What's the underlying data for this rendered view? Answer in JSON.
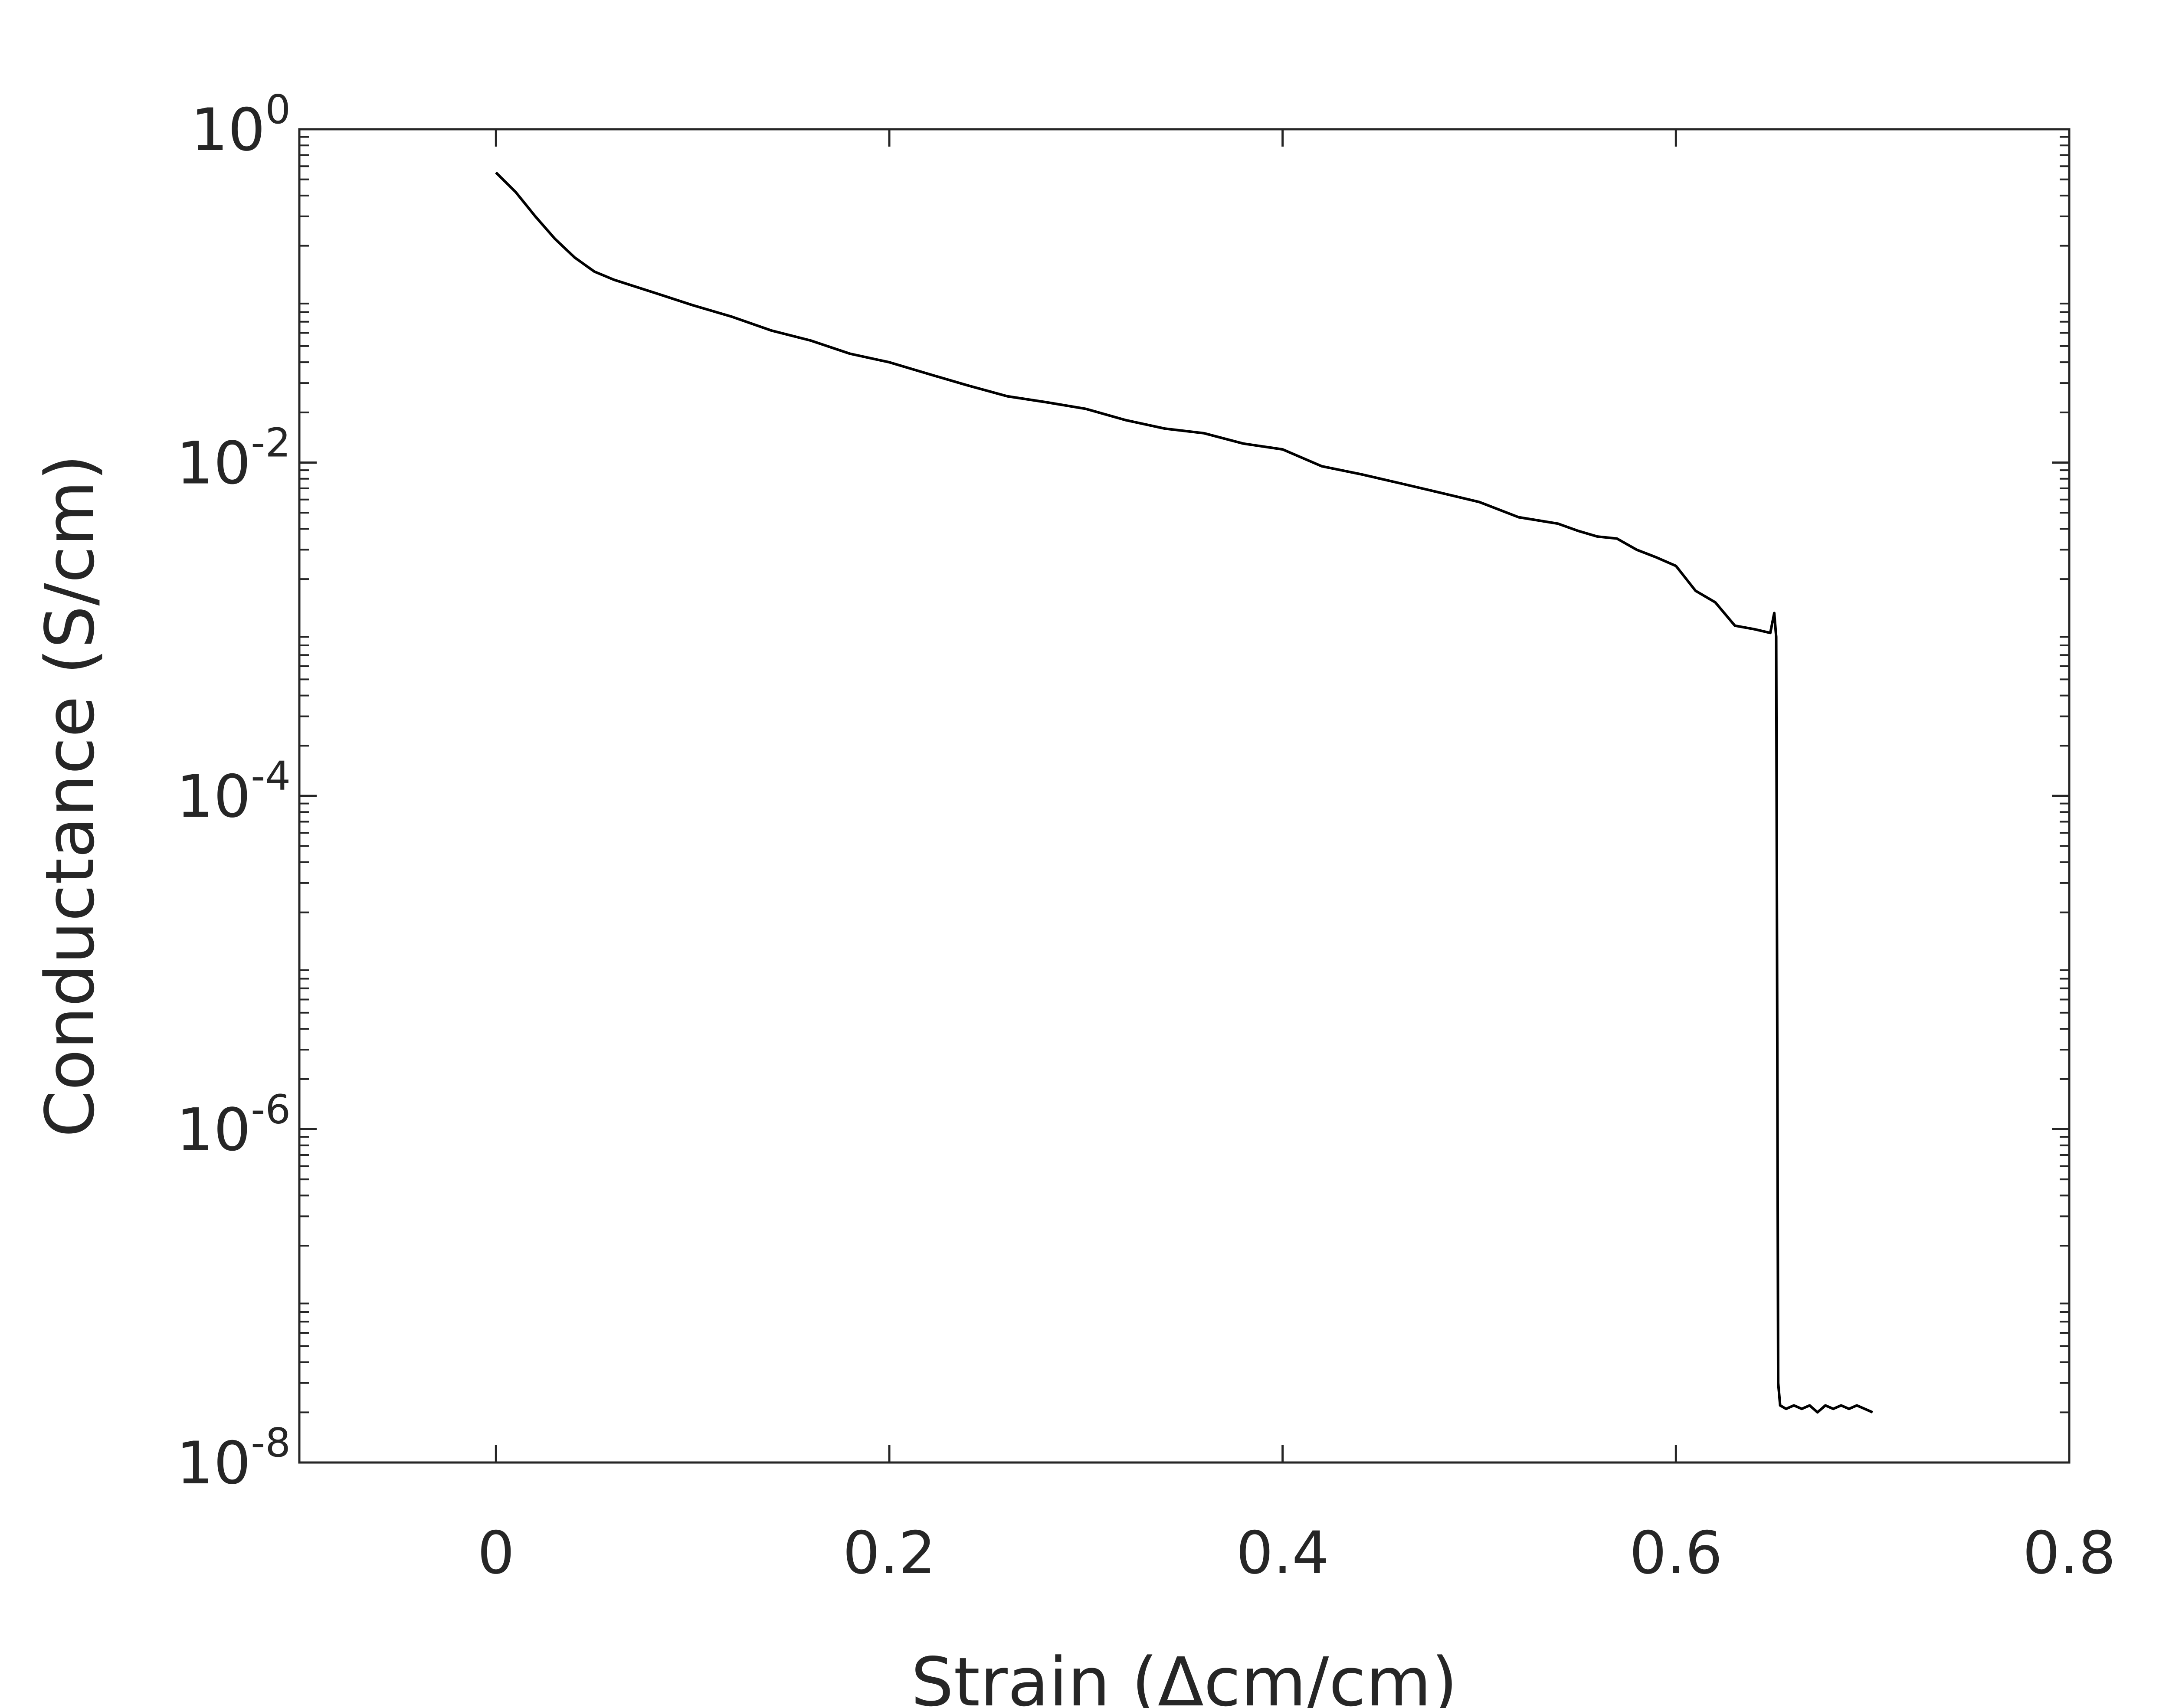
{
  "chart_data": {
    "type": "line",
    "title": "",
    "xlabel": "Strain (Δcm/cm)",
    "ylabel": "Conductance (S/cm)",
    "xlim": [
      -0.1,
      0.8
    ],
    "ylim": [
      1e-08,
      1
    ],
    "yscale": "log",
    "grid": false,
    "legend": "none",
    "line_color": "#000000",
    "x_ticks": [
      {
        "value": 0,
        "label": "0"
      },
      {
        "value": 0.2,
        "label": "0.2"
      },
      {
        "value": 0.4,
        "label": "0.4"
      },
      {
        "value": 0.6,
        "label": "0.6"
      },
      {
        "value": 0.8,
        "label": "0.8"
      }
    ],
    "y_ticks": [
      {
        "value": 1,
        "base": "10",
        "exp": "0"
      },
      {
        "value": 0.01,
        "base": "10",
        "exp": "-2"
      },
      {
        "value": 0.0001,
        "base": "10",
        "exp": "-4"
      },
      {
        "value": 1e-06,
        "base": "10",
        "exp": "-6"
      },
      {
        "value": 1e-08,
        "base": "10",
        "exp": "-8"
      }
    ],
    "series": [
      {
        "x": [
          0,
          0.01,
          0.02,
          0.03,
          0.04,
          0.05,
          0.06,
          0.08,
          0.1,
          0.12,
          0.14,
          0.16,
          0.18,
          0.2,
          0.22,
          0.24,
          0.26,
          0.28,
          0.3,
          0.32,
          0.34,
          0.36,
          0.38,
          0.4,
          0.42,
          0.44,
          0.46,
          0.48,
          0.5,
          0.52,
          0.54,
          0.55,
          0.56,
          0.57,
          0.58,
          0.59,
          0.6,
          0.61,
          0.62,
          0.63,
          0.64,
          0.648,
          0.65,
          0.651,
          0.652,
          0.653,
          0.656,
          0.66,
          0.664,
          0.668,
          0.672,
          0.676,
          0.68,
          0.684,
          0.688,
          0.692,
          0.696,
          0.7
        ],
        "y": [
          0.55,
          0.42,
          0.3,
          0.22,
          0.17,
          0.14,
          0.125,
          0.105,
          0.088,
          0.075,
          0.062,
          0.054,
          0.045,
          0.04,
          0.034,
          0.029,
          0.025,
          0.023,
          0.021,
          0.018,
          0.016,
          0.015,
          0.013,
          0.012,
          0.0095,
          0.0085,
          0.0075,
          0.0066,
          0.0058,
          0.0047,
          0.0043,
          0.0039,
          0.0036,
          0.0035,
          0.003,
          0.0027,
          0.0024,
          0.0017,
          0.00145,
          0.00105,
          0.001,
          0.00095,
          0.00125,
          0.0009,
          3e-08,
          2.2e-08,
          2.1e-08,
          2.2e-08,
          2.1e-08,
          2.2e-08,
          2e-08,
          2.2e-08,
          2.1e-08,
          2.2e-08,
          2.1e-08,
          2.2e-08,
          2.1e-08,
          2e-08
        ]
      }
    ]
  }
}
